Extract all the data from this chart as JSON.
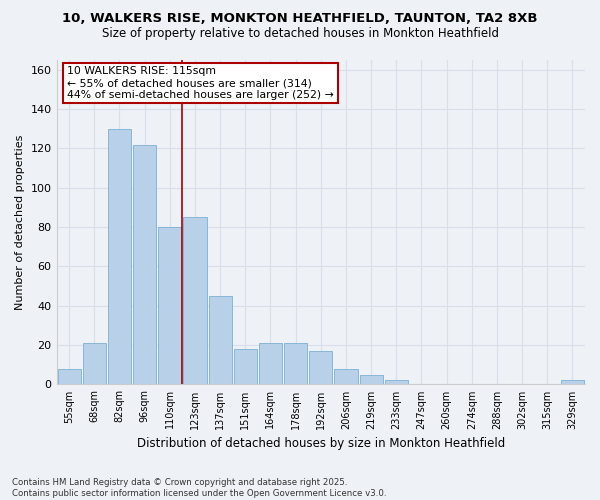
{
  "title1": "10, WALKERS RISE, MONKTON HEATHFIELD, TAUNTON, TA2 8XB",
  "title2": "Size of property relative to detached houses in Monkton Heathfield",
  "xlabel": "Distribution of detached houses by size in Monkton Heathfield",
  "ylabel": "Number of detached properties",
  "footnote1": "Contains HM Land Registry data © Crown copyright and database right 2025.",
  "footnote2": "Contains public sector information licensed under the Open Government Licence v3.0.",
  "annotation_line1": "10 WALKERS RISE: 115sqm",
  "annotation_line2": "← 55% of detached houses are smaller (314)",
  "annotation_line3": "44% of semi-detached houses are larger (252) →",
  "categories": [
    "55sqm",
    "68sqm",
    "82sqm",
    "96sqm",
    "110sqm",
    "123sqm",
    "137sqm",
    "151sqm",
    "164sqm",
    "178sqm",
    "192sqm",
    "206sqm",
    "219sqm",
    "233sqm",
    "247sqm",
    "260sqm",
    "274sqm",
    "288sqm",
    "302sqm",
    "315sqm",
    "329sqm"
  ],
  "values": [
    8,
    21,
    130,
    122,
    80,
    85,
    45,
    18,
    21,
    21,
    17,
    8,
    5,
    2,
    0,
    0,
    0,
    0,
    0,
    0,
    2
  ],
  "bar_color": "#b8d0e8",
  "bar_edge_color": "#7bafd4",
  "marker_color": "#aa0000",
  "marker_index": 4.5,
  "background_color": "#eef2f7",
  "ylim": [
    0,
    165
  ],
  "yticks": [
    0,
    20,
    40,
    60,
    80,
    100,
    120,
    140,
    160
  ],
  "grid_color": "#d8dfe8"
}
